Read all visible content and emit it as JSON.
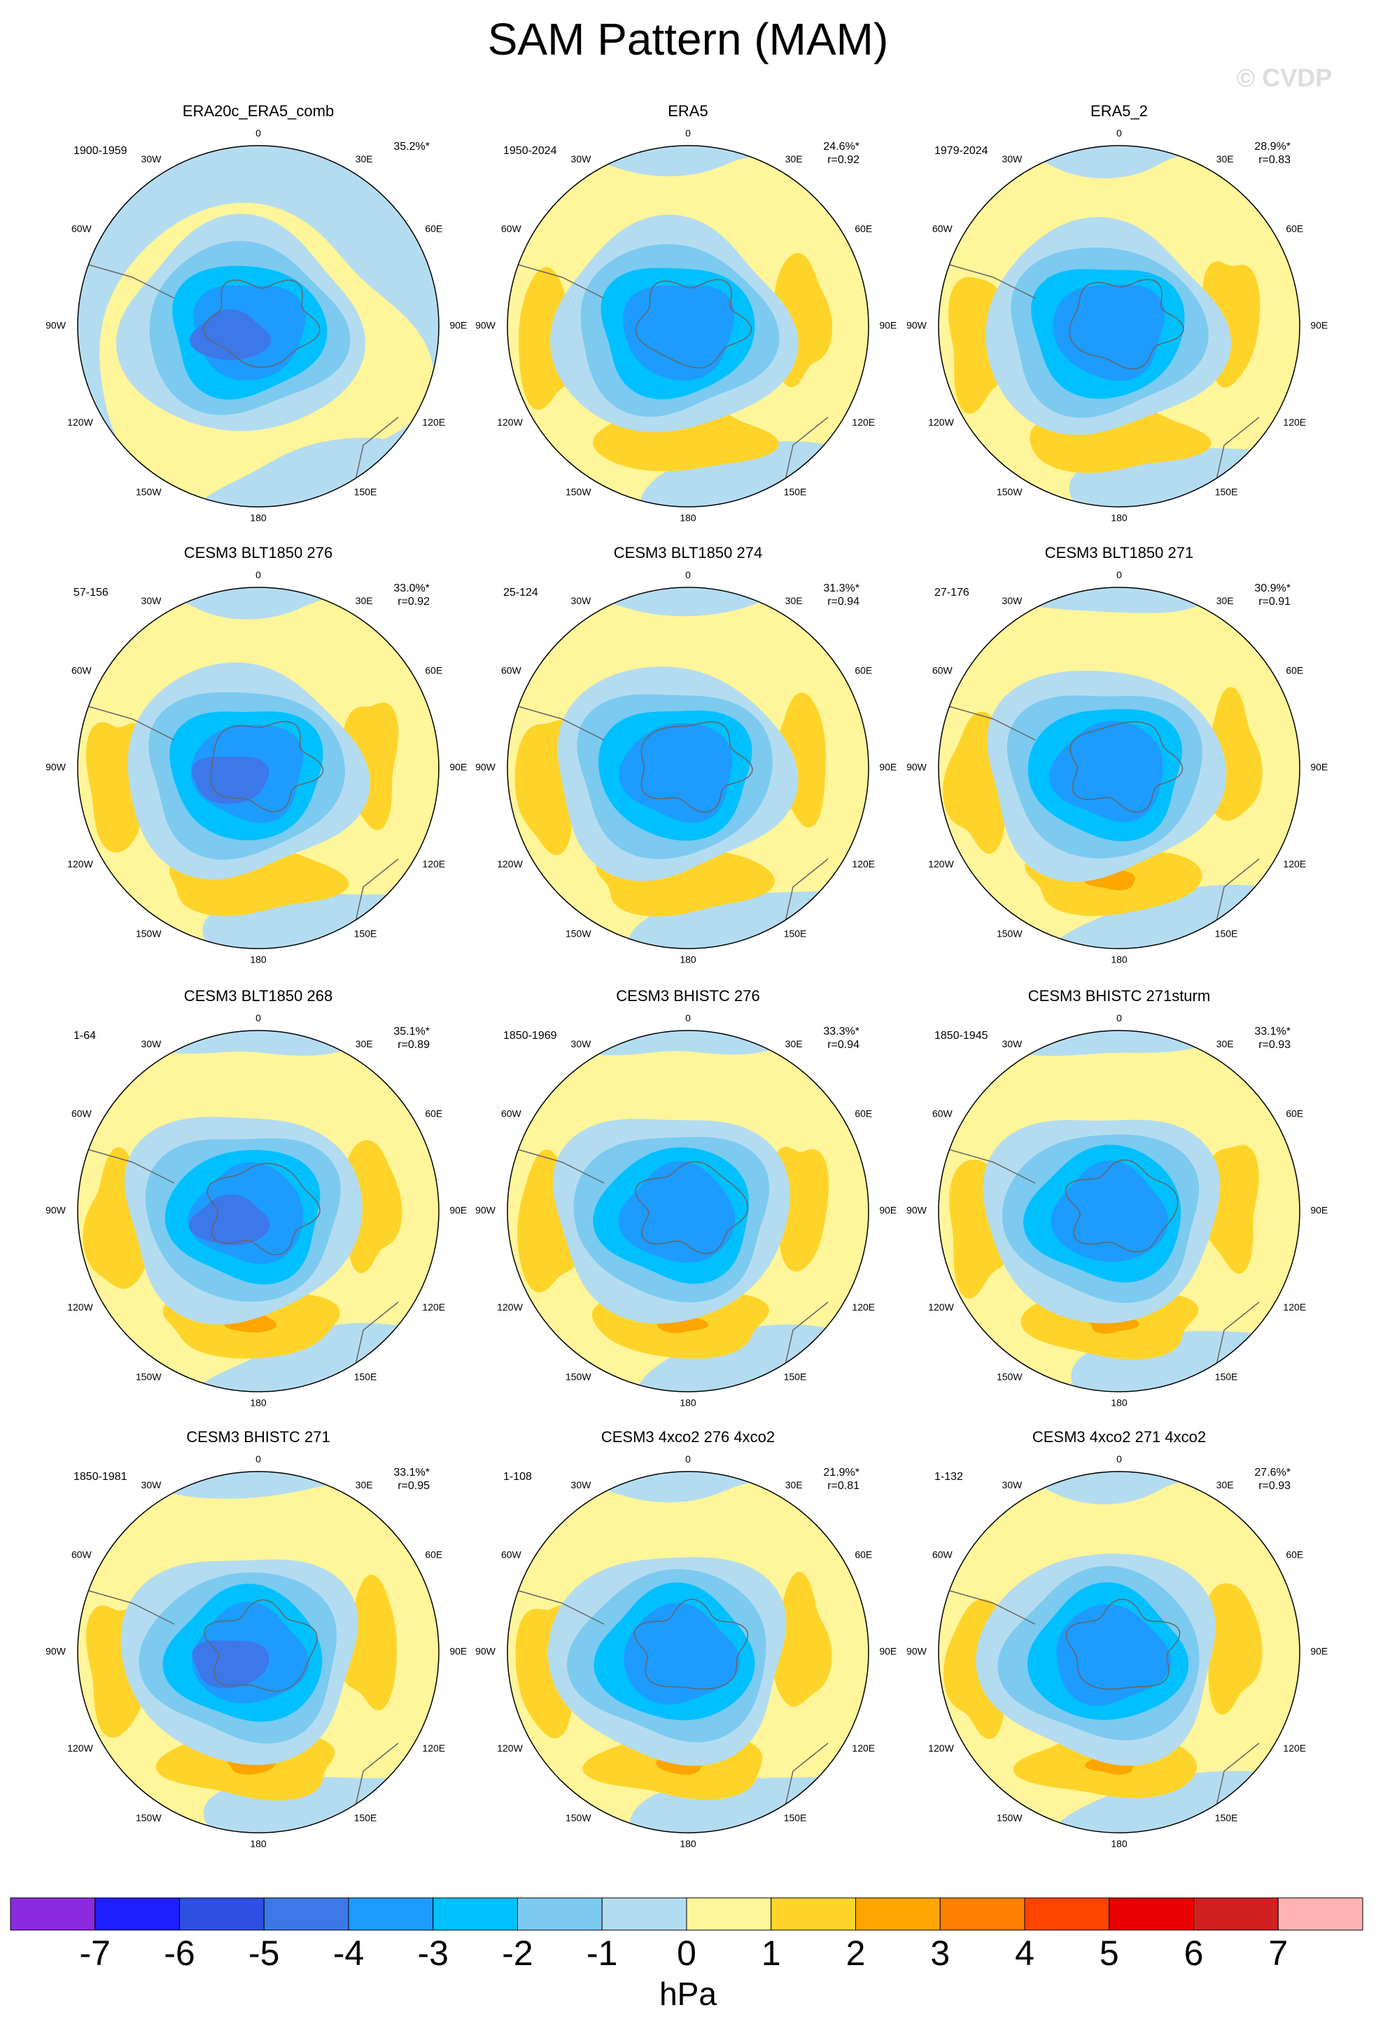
{
  "title": "SAM Pattern (MAM)",
  "watermark": "© CVDP",
  "longitude_labels": [
    "0",
    "30E",
    "60E",
    "90E",
    "120E",
    "150E",
    "180",
    "150W",
    "120W",
    "90W",
    "60W",
    "30W"
  ],
  "panels": [
    {
      "title": "ERA20c_ERA5_comb",
      "years": "1900-1959",
      "pct": "35.2%*"
    },
    {
      "title": "ERA5",
      "years": "1950-2024",
      "pct": "24.6%*",
      "r": "r=0.92"
    },
    {
      "title": "ERA5_2",
      "years": "1979-2024",
      "pct": "28.9%*",
      "r": "r=0.83"
    },
    {
      "title": "CESM3 BLT1850 276",
      "years": "57-156",
      "pct": "33.0%*",
      "r": "r=0.92"
    },
    {
      "title": "CESM3 BLT1850 274",
      "years": "25-124",
      "pct": "31.3%*",
      "r": "r=0.94"
    },
    {
      "title": "CESM3 BLT1850 271",
      "years": "27-176",
      "pct": "30.9%*",
      "r": "r=0.91"
    },
    {
      "title": "CESM3 BLT1850 268",
      "years": "1-64",
      "pct": "35.1%*",
      "r": "r=0.89"
    },
    {
      "title": "CESM3 BHISTC 276",
      "years": "1850-1969",
      "pct": "33.3%*",
      "r": "r=0.94"
    },
    {
      "title": "CESM3 BHISTC 271sturm",
      "years": "1850-1945",
      "pct": "33.1%*",
      "r": "r=0.93"
    },
    {
      "title": "CESM3 BHISTC 271",
      "years": "1850-1981",
      "pct": "33.1%*",
      "r": "r=0.95"
    },
    {
      "title": "CESM3 4xco2 276 4xco2",
      "years": "1-108",
      "pct": "21.9%*",
      "r": "r=0.81"
    },
    {
      "title": "CESM3 4xco2 271 4xco2",
      "years": "1-132",
      "pct": "27.6%*",
      "r": "r=0.93"
    }
  ],
  "colorbar": {
    "levels": [
      -7,
      -6,
      -5,
      -4,
      -3,
      -2,
      -1,
      0,
      1,
      2,
      3,
      4,
      5,
      6,
      7
    ],
    "colors": [
      "#8a2be2",
      "#1e1eff",
      "#2f4fe0",
      "#3c78e8",
      "#1e9bff",
      "#00c0ff",
      "#7ccaf0",
      "#b4dcf0",
      "#fff59a",
      "#ffd42a",
      "#ffa500",
      "#ff7f00",
      "#ff4500",
      "#e80000",
      "#d02020",
      "#ffb4b4"
    ],
    "label": "hPa"
  }
}
